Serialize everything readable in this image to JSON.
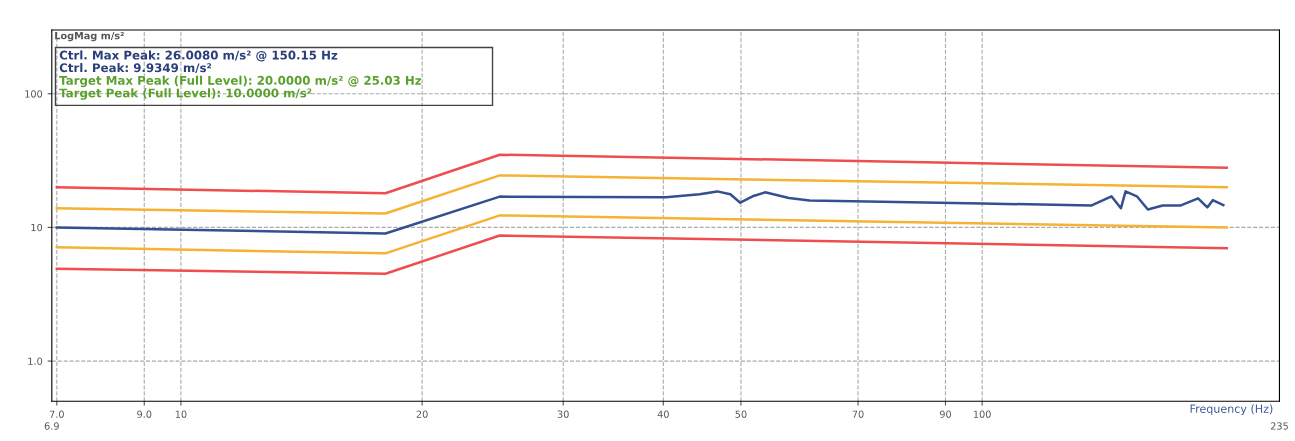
{
  "chart_data": {
    "type": "line",
    "log": "xy",
    "grid": true,
    "xlabel": "Frequency (Hz)",
    "ylabel": "LogMag m/s²",
    "xlim": [
      6.9,
      235
    ],
    "ylim": [
      0.5,
      300
    ],
    "xticks": [
      {
        "value": 7,
        "label": "7.0"
      },
      {
        "value": 9,
        "label": "9.0"
      },
      10,
      20,
      30,
      40,
      50,
      70,
      90,
      100
    ],
    "yticks": [
      {
        "value": 1,
        "label": "1.0"
      },
      10,
      100
    ],
    "annotations": [
      "Ctrl. Max Peak: 26.0080 m/s² @ 150.15 Hz",
      "Ctrl. Peak: 9.9349 m/s²",
      "Target Max Peak (Full Level): 20.0000 m/s² @ 25.03 Hz",
      "Target Peak (Full Level): 10.0000 m/s²",
      "6.9",
      "235"
    ],
    "series": [
      {
        "color": "#f04e4e",
        "x": [
          7,
          18,
          25,
          202
        ],
        "values": [
          20,
          18,
          35,
          28
        ]
      },
      {
        "color": "#f5b335",
        "x": [
          7,
          18,
          25,
          202
        ],
        "values": [
          13.9,
          12.7,
          24.5,
          20
        ]
      },
      {
        "color": "#f5b335",
        "x": [
          7,
          18,
          25,
          202
        ],
        "values": [
          7.1,
          6.4,
          12.3,
          10
        ]
      },
      {
        "color": "#f04e4e",
        "x": [
          7,
          18,
          25,
          202
        ],
        "values": [
          4.9,
          4.5,
          8.7,
          7
        ]
      },
      {
        "color": "#34508f",
        "x": [
          7,
          18,
          25,
          40.3,
          44.4,
          46.7,
          48.5,
          49.9,
          51.7,
          53.6,
          57.4,
          60.9,
          100,
          137,
          145,
          149,
          151,
          156,
          161,
          168,
          177,
          186,
          191,
          194,
          200
        ],
        "values": [
          10,
          9,
          17,
          16.8,
          17.7,
          18.6,
          17.7,
          15.3,
          17.1,
          18.3,
          16.6,
          15.9,
          15.1,
          14.6,
          17.1,
          13.9,
          18.6,
          17.1,
          13.6,
          14.6,
          14.6,
          16.5,
          14.1,
          16,
          14.7
        ]
      }
    ]
  }
}
